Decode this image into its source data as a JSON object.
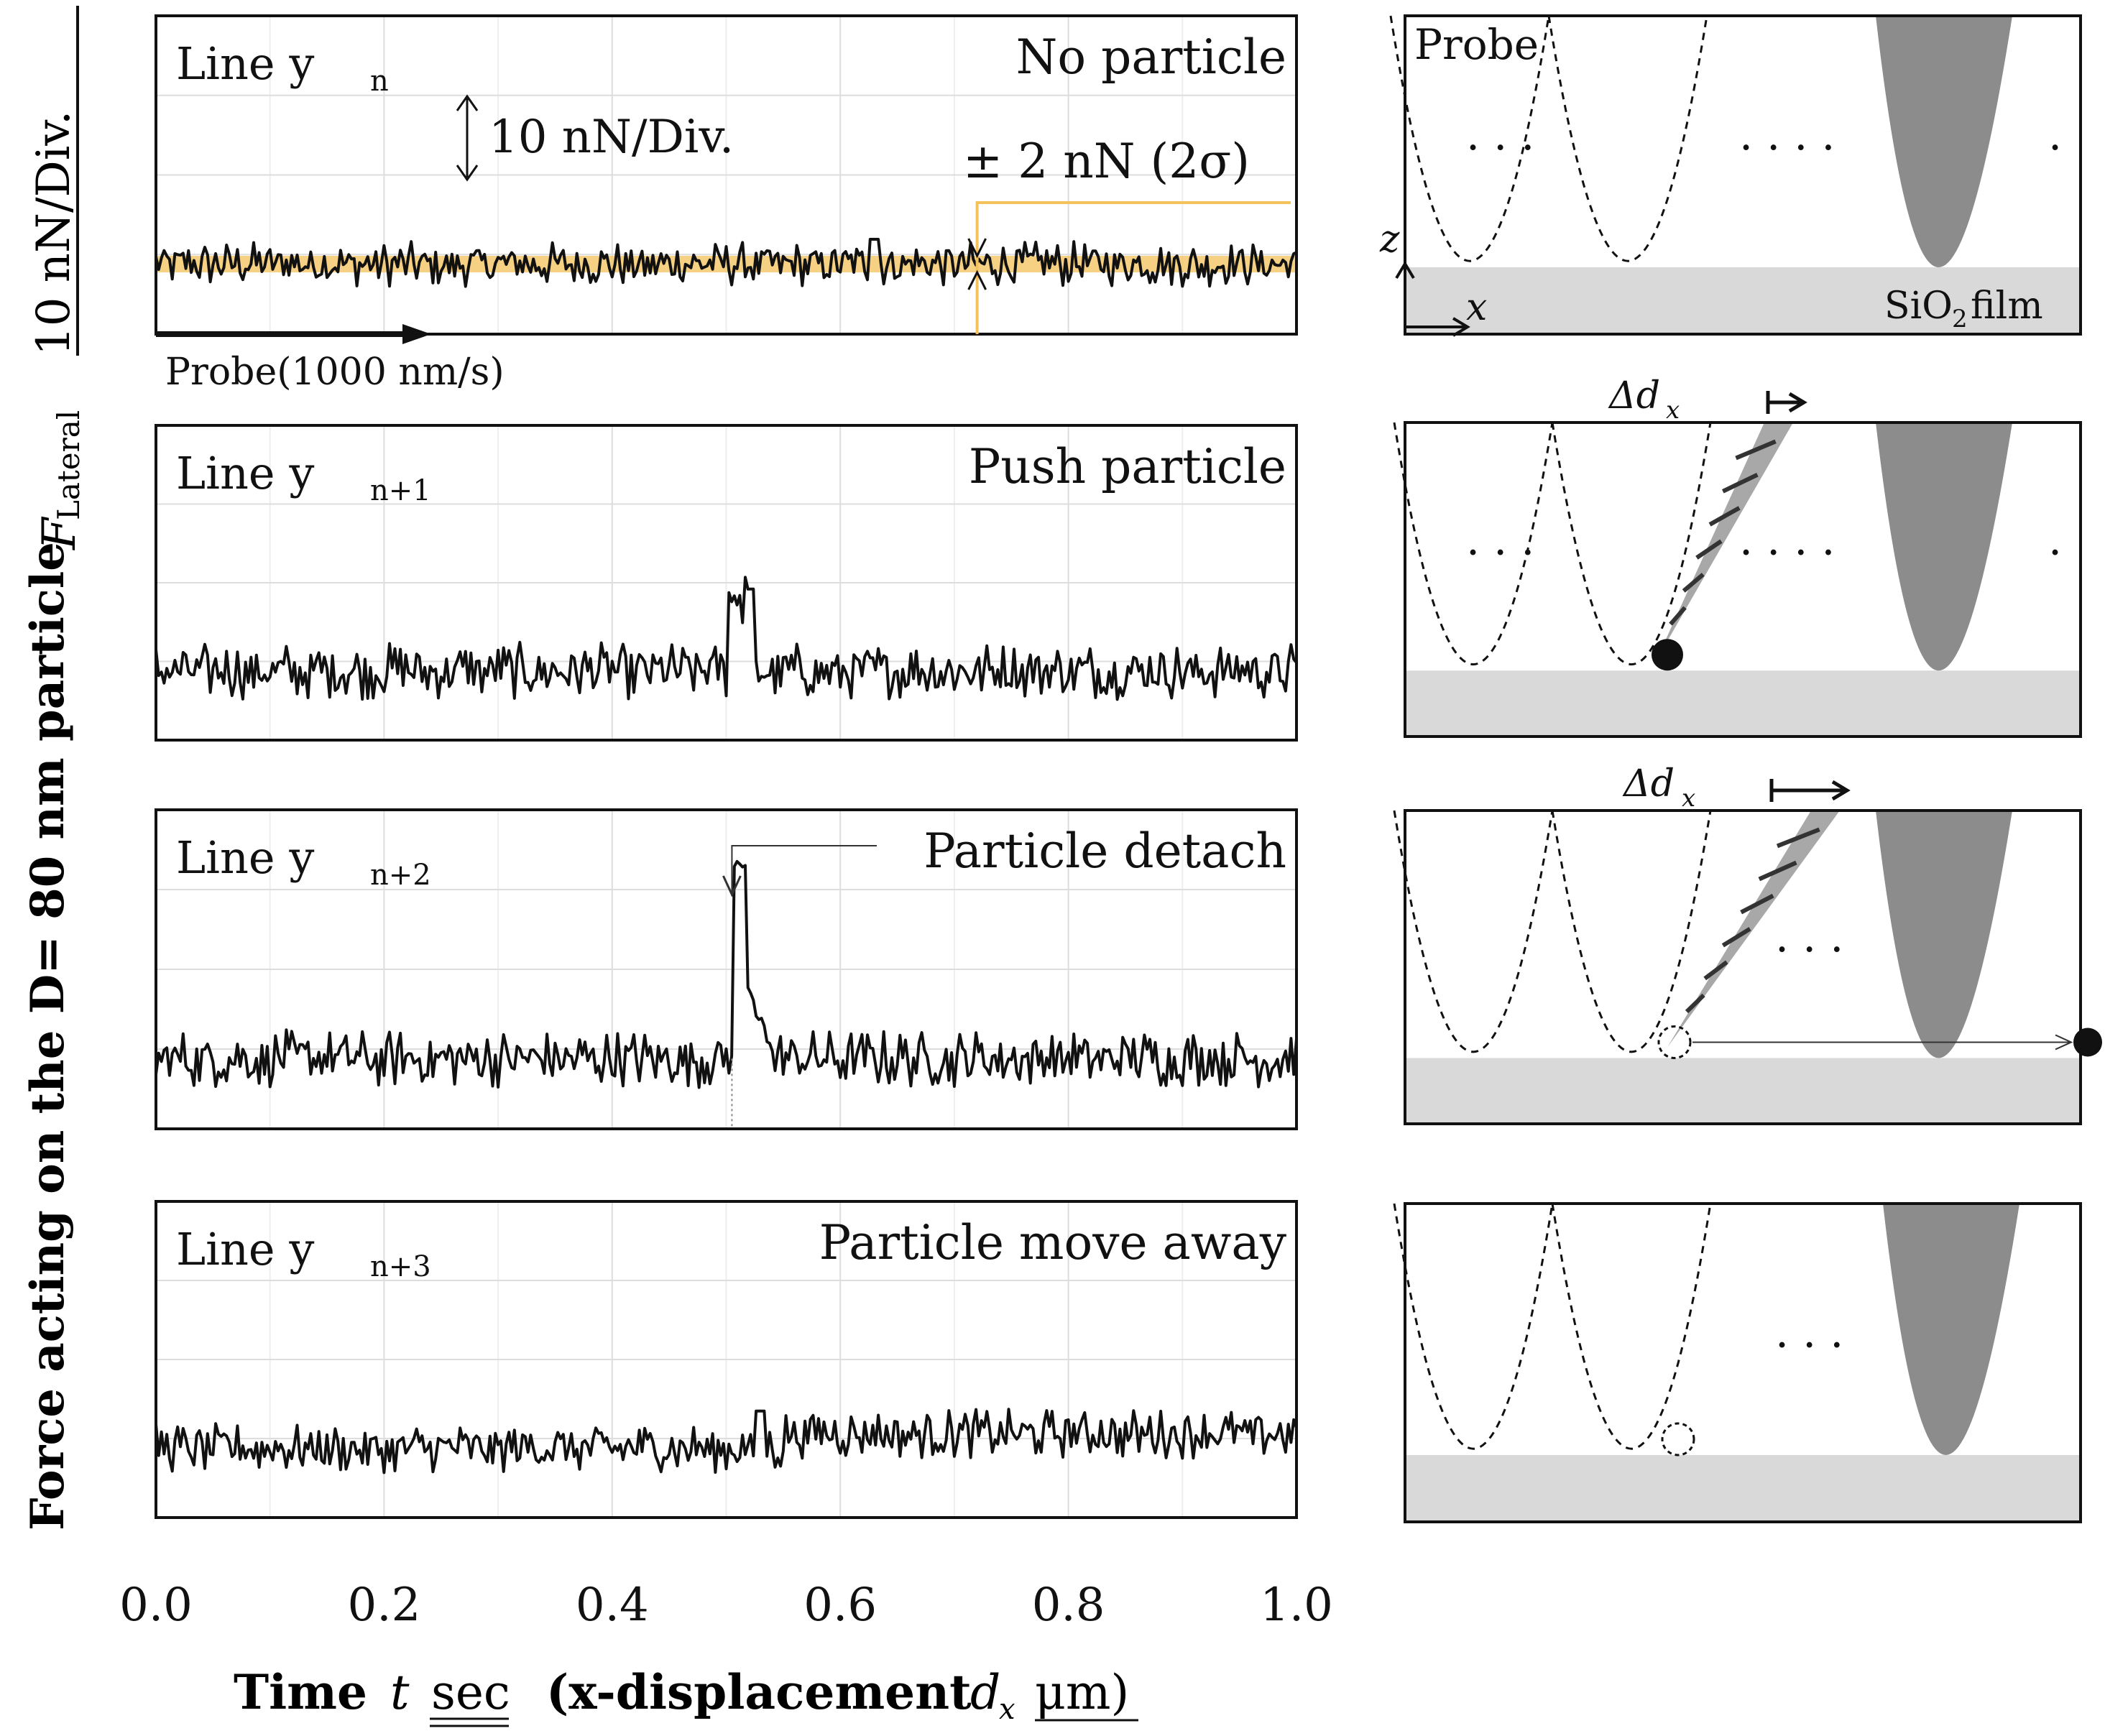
{
  "figure": {
    "y_axis_label": "Force acting on the D= 80 nm particle",
    "y_axis_symbol": "F",
    "y_axis_symbol_sub": "Lateral",
    "y_axis_unit": "10 nN/Div.",
    "x_axis_label_time": "Time",
    "x_axis_label_t": "t",
    "x_axis_label_sec": "sec",
    "x_axis_label_disp": "(x-displacement",
    "x_axis_label_dx": "d",
    "x_axis_label_dx_sub": "x",
    "x_axis_label_um": "μm)",
    "trace_color": "#111111",
    "band_color": "#f3c25a",
    "grid_color": "#dddddd",
    "probe_fill": "#8c8c8c",
    "film_fill": "#d9d9d9"
  },
  "chart_data": {
    "type": "line",
    "x_ticks": [
      "0.0",
      "0.2",
      "0.4",
      "0.6",
      "0.8",
      "1.0"
    ],
    "xlim": [
      0,
      1
    ],
    "ylim": [
      -3,
      2
    ],
    "grid": true,
    "series": [
      {
        "name": "Line y_n",
        "line_main": "Line y",
        "line_sub": "n",
        "state": "No particle",
        "baseline": 0,
        "noise": 0.55,
        "events": [
          {
            "x": 0.63,
            "y": 0.6
          }
        ],
        "division_label": "10 nN/Div.",
        "sigma_label": "± 2 nN (2σ)",
        "sigma_band": [
          -0.2,
          0.2
        ],
        "sigma_marker_x": 0.72,
        "probe_label": "Probe(1000 nm/s)"
      },
      {
        "name": "Line y_n+1",
        "line_main": "Line y",
        "line_sub": "n+1",
        "state": "Push particle",
        "baseline": 0,
        "noise": 0.7,
        "events": [
          {
            "x": 0.51,
            "y": 3.0
          },
          {
            "x": 0.52,
            "y": 2.0
          }
        ]
      },
      {
        "name": "Line y_n+2",
        "line_main": "Line y",
        "line_sub": "n+2",
        "state": "Particle detach",
        "baseline": 0,
        "noise": 0.7,
        "events": [
          {
            "x": 0.51,
            "y": 4.8
          },
          {
            "x": 0.515,
            "y": 4.8
          },
          {
            "x": 0.52,
            "y": 2.2
          }
        ],
        "marker_x": 0.505
      },
      {
        "name": "Line y_n+3",
        "line_main": "Line y",
        "line_sub": "n+3",
        "state": "Particle move away",
        "baseline": 0,
        "noise": 0.6,
        "events": [
          {
            "x": 0.53,
            "y": 0.9
          }
        ]
      }
    ]
  },
  "schematic": {
    "probe_label": "Probe",
    "film_label": "SiO",
    "film_sub": "2",
    "film_word": "film",
    "z_label": "z",
    "x_label": "x",
    "delta_label": "Δd",
    "delta_sub": "x",
    "dots_label": ". . ."
  }
}
